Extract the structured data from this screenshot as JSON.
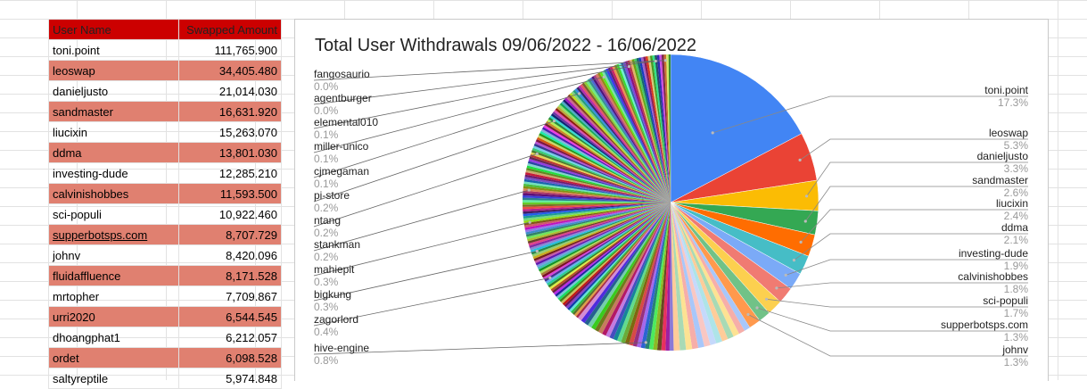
{
  "table": {
    "headers": [
      "User Name",
      "Swapped Amount"
    ],
    "rows": [
      {
        "name": "toni.point",
        "amount": "111,765.900"
      },
      {
        "name": "leoswap",
        "amount": "34,405.480"
      },
      {
        "name": "danieljusto",
        "amount": "21,014.030"
      },
      {
        "name": "sandmaster",
        "amount": "16,631.920"
      },
      {
        "name": "liucixin",
        "amount": "15,263.070"
      },
      {
        "name": "ddma",
        "amount": "13,801.030"
      },
      {
        "name": "investing-dude",
        "amount": "12,285.210"
      },
      {
        "name": "calvinishobbes",
        "amount": "11,593.500"
      },
      {
        "name": "sci-populi",
        "amount": "10,922.460"
      },
      {
        "name": "supperbotsps.com",
        "amount": "8,707.729"
      },
      {
        "name": "johnv",
        "amount": "8,420.096"
      },
      {
        "name": "fluidaffluence",
        "amount": "8,171.528"
      },
      {
        "name": "mrtopher",
        "amount": "7,709.867"
      },
      {
        "name": "urri2020",
        "amount": "6,544.545"
      },
      {
        "name": "dhoangphat1",
        "amount": "6,212.057"
      },
      {
        "name": "ordet",
        "amount": "6,098.528"
      },
      {
        "name": "saltyreptile",
        "amount": "5,974.848"
      }
    ]
  },
  "colors": {
    "header_bg": "#cc0000",
    "alt_row_bg": "#e08070",
    "slices": [
      "#4285f4",
      "#ea4335",
      "#fbbc04",
      "#34a853",
      "#ff6d01",
      "#46bdc6",
      "#7baaf7",
      "#f07b72",
      "#fcd04f",
      "#71c287",
      "#ff994d",
      "#7ed1d7"
    ]
  },
  "chart_data": {
    "type": "pie",
    "title": "Total User Withdrawals 09/06/2022 - 16/06/2022",
    "right_labels": [
      {
        "label": "toni.point",
        "pct": "17.3%",
        "value": 17.3
      },
      {
        "label": "leoswap",
        "pct": "5.3%",
        "value": 5.3
      },
      {
        "label": "danieljusto",
        "pct": "3.3%",
        "value": 3.3
      },
      {
        "label": "sandmaster",
        "pct": "2.6%",
        "value": 2.6
      },
      {
        "label": "liucixin",
        "pct": "2.4%",
        "value": 2.4
      },
      {
        "label": "ddma",
        "pct": "2.1%",
        "value": 2.1
      },
      {
        "label": "investing-dude",
        "pct": "1.9%",
        "value": 1.9
      },
      {
        "label": "calvinishobbes",
        "pct": "1.8%",
        "value": 1.8
      },
      {
        "label": "sci-populi",
        "pct": "1.7%",
        "value": 1.7
      },
      {
        "label": "supperbotsps.com",
        "pct": "1.3%",
        "value": 1.3
      },
      {
        "label": "johnv",
        "pct": "1.3%",
        "value": 1.3
      }
    ],
    "left_labels": [
      {
        "label": "fangosaurio",
        "pct": "0.0%",
        "value": 0.0
      },
      {
        "label": "agentburger",
        "pct": "0.0%",
        "value": 0.0
      },
      {
        "label": "elemental010",
        "pct": "0.1%",
        "value": 0.1
      },
      {
        "label": "miller-unico",
        "pct": "0.1%",
        "value": 0.1
      },
      {
        "label": "cjmegaman",
        "pct": "0.1%",
        "value": 0.1
      },
      {
        "label": "pi-store",
        "pct": "0.2%",
        "value": 0.2
      },
      {
        "label": "ntang",
        "pct": "0.2%",
        "value": 0.2
      },
      {
        "label": "stankman",
        "pct": "0.2%",
        "value": 0.2
      },
      {
        "label": "mahiepit",
        "pct": "0.3%",
        "value": 0.3
      },
      {
        "label": "bigkung",
        "pct": "0.3%",
        "value": 0.3
      },
      {
        "label": "zagorlord",
        "pct": "0.4%",
        "value": 0.4
      },
      {
        "label": "hive-engine",
        "pct": "0.8%",
        "value": 0.8
      }
    ]
  }
}
